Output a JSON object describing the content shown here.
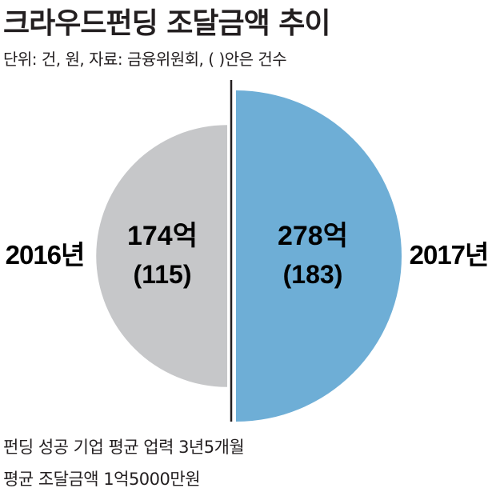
{
  "title": "크라우드펀딩 조달금액 추이",
  "subtitle": "단위: 건, 원, 자료: 금융위원회, (    )안은 건수",
  "chart_data": {
    "type": "pie",
    "title": "크라우드펀딩 조달금액 추이",
    "unit_note": "단위: 건, 원, 자료: 금융위원회, (    )안은 건수",
    "slices": [
      {
        "year_label": "2016년",
        "amount_label": "174억",
        "count_label": "(115)",
        "amount": 174,
        "count": 115,
        "color": "#c6c7c9"
      },
      {
        "year_label": "2017년",
        "amount_label": "278억",
        "count_label": "(183)",
        "amount": 278,
        "count": 183,
        "color": "#6eaed6"
      }
    ]
  },
  "colors": {
    "divider": "#231f20",
    "text": "#231f20"
  },
  "notes": [
    "펀딩 성공 기업 평균 업력 3년5개월",
    "평균 조달금액 1억5000만원"
  ]
}
